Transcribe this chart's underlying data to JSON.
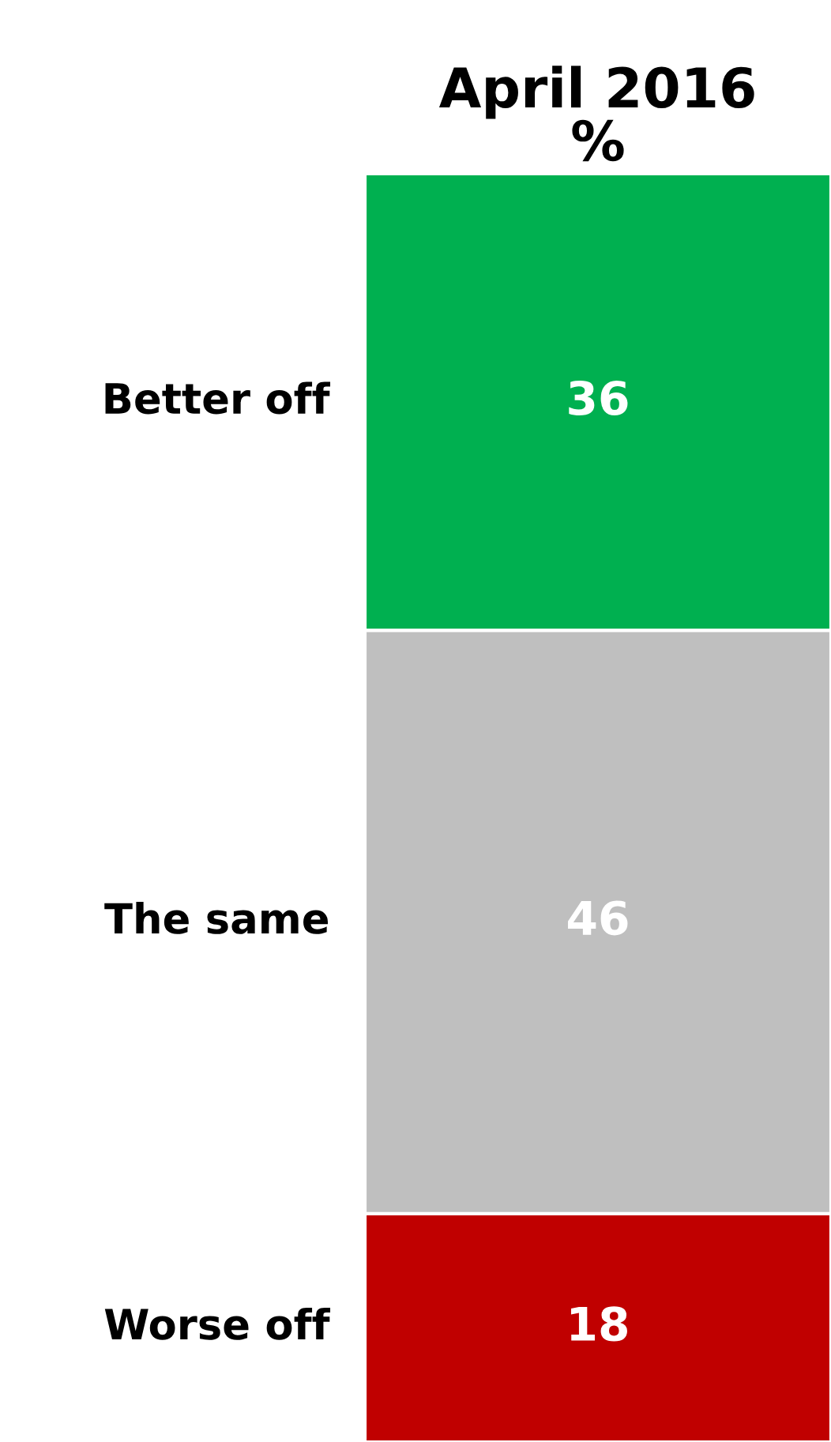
{
  "chart_data": {
    "type": "bar",
    "title": "April 2016\n%",
    "categories": [
      null
    ],
    "stacked": true,
    "data_labels": true,
    "series": [
      {
        "name": "Worse off",
        "color": "#c00000",
        "values": [
          18
        ]
      },
      {
        "name": "The same",
        "color": "#bfbfbf",
        "values": [
          46
        ]
      },
      {
        "name": "Better off",
        "color": "#00b050",
        "values": [
          36
        ]
      }
    ]
  }
}
